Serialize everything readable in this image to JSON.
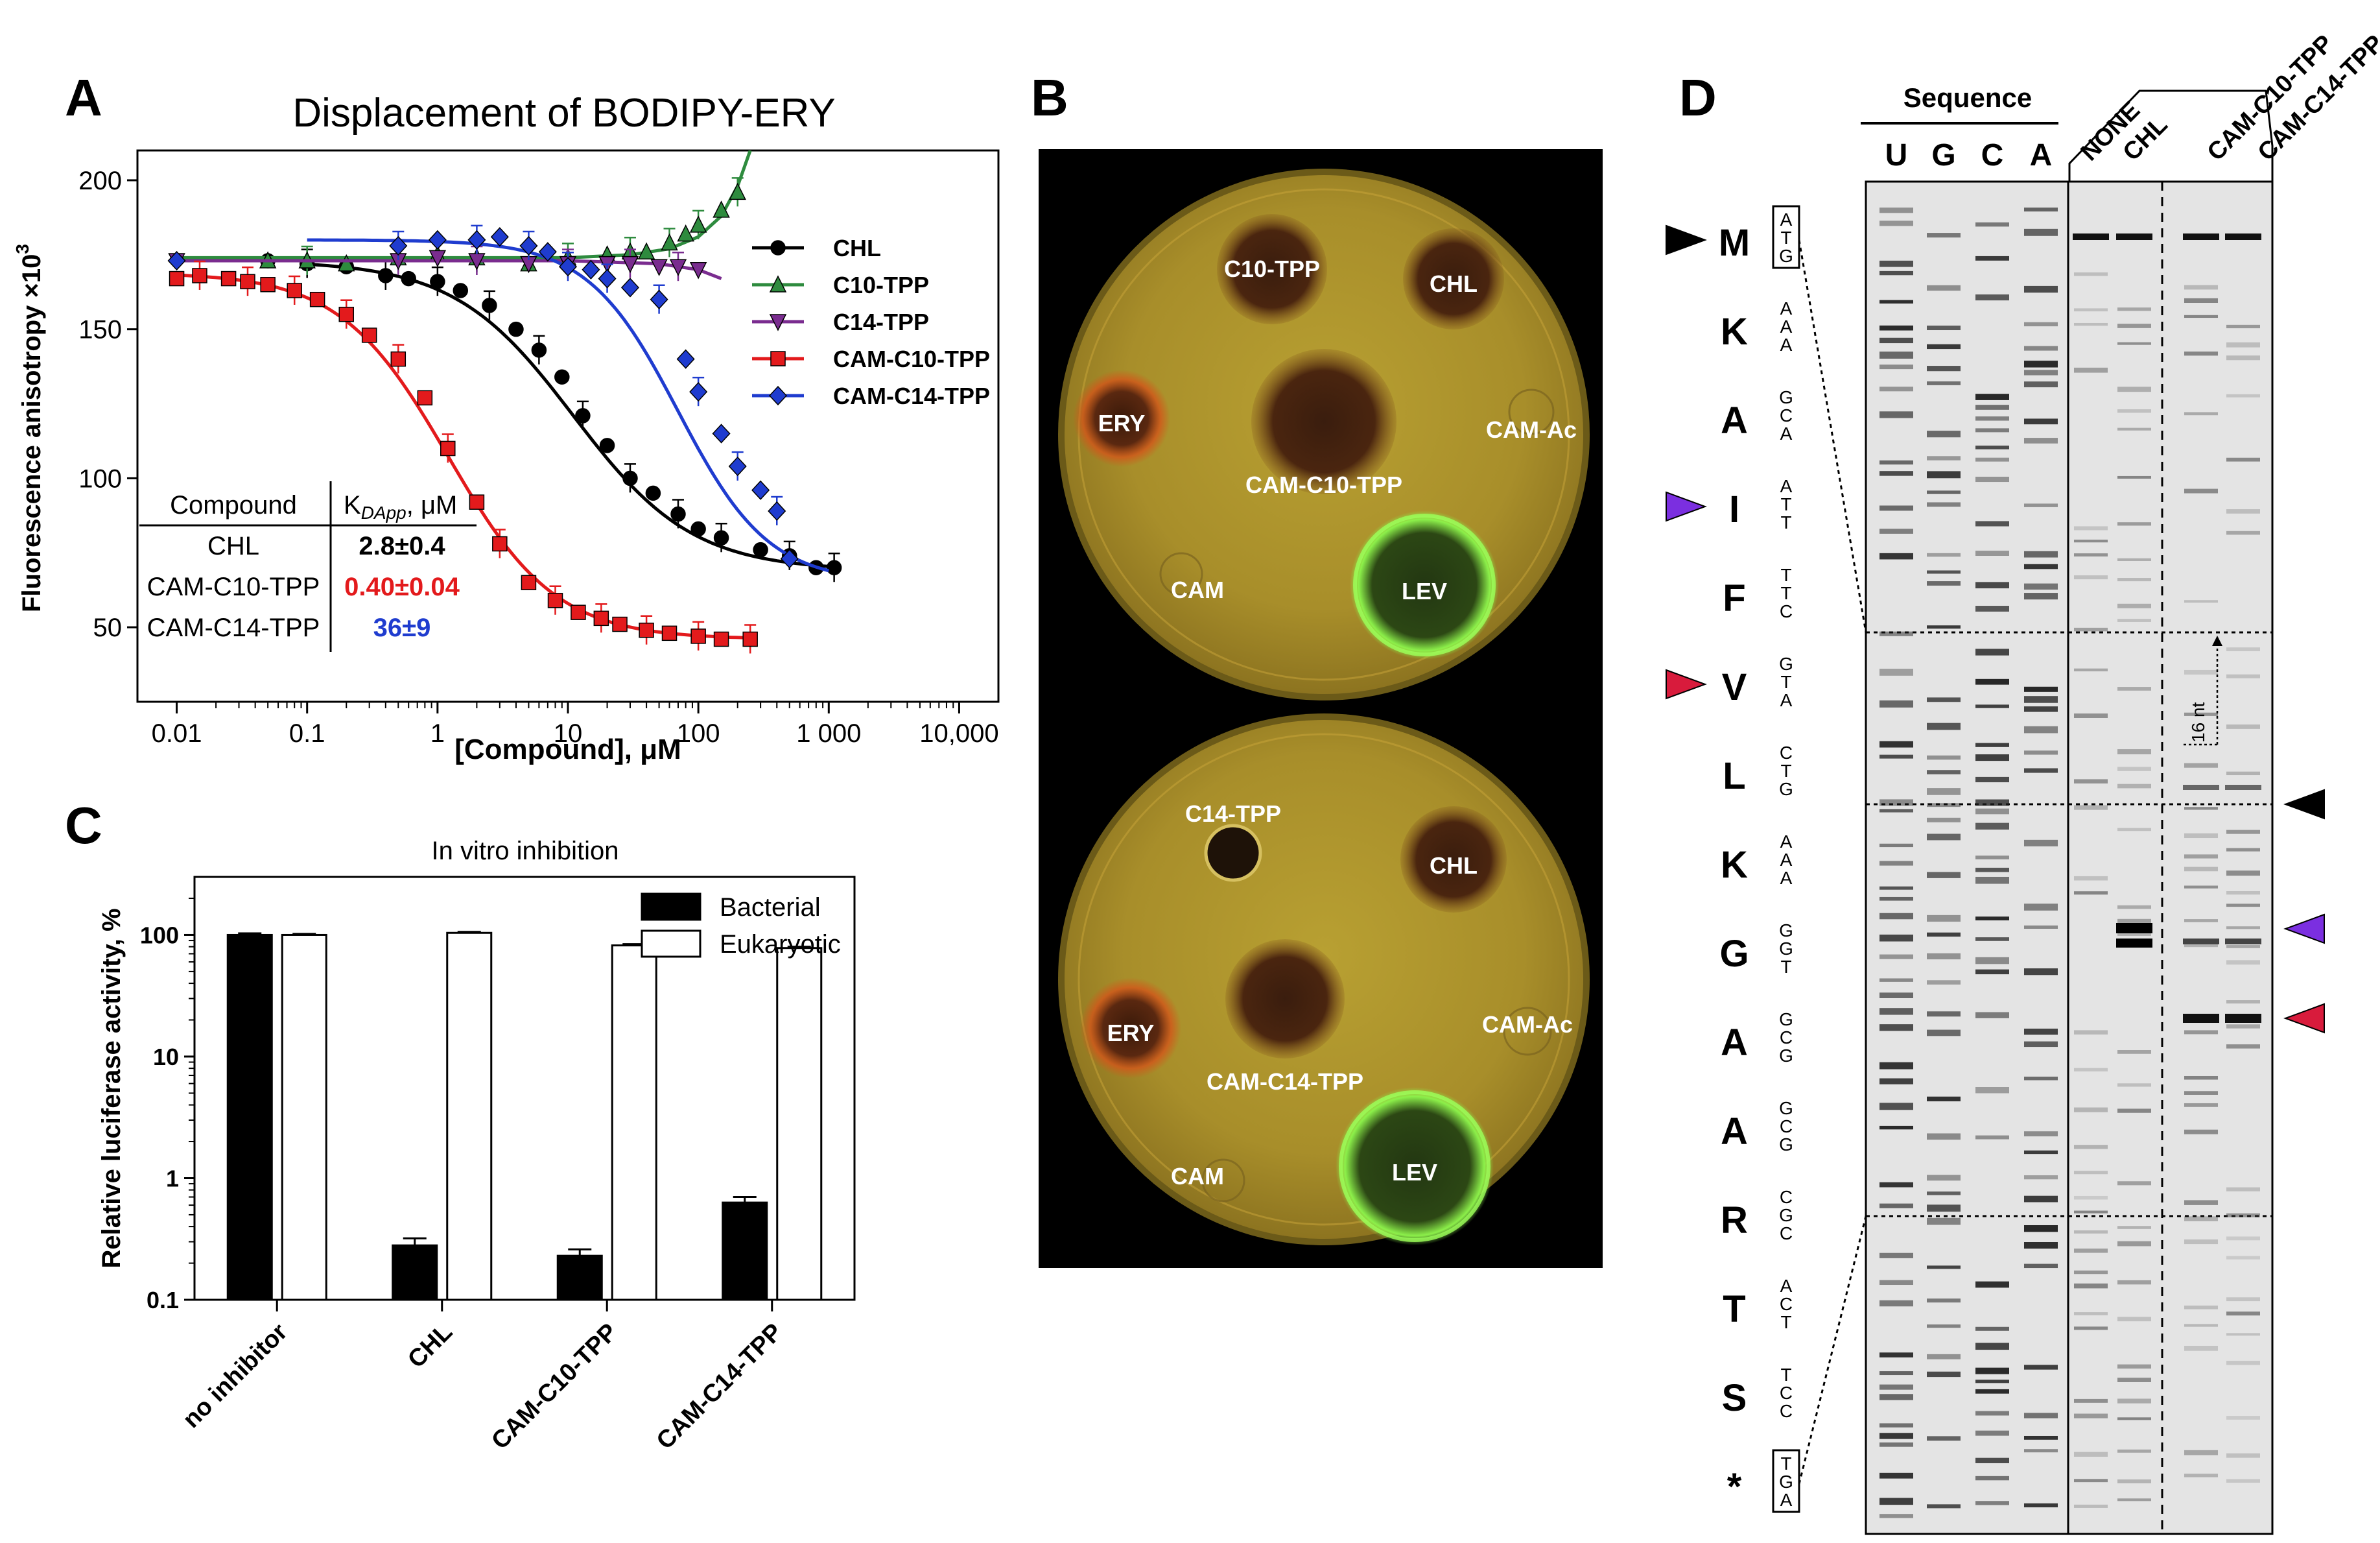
{
  "panel_letters": {
    "a": "A",
    "b": "B",
    "c": "C",
    "d": "D"
  },
  "chart_data": [
    {
      "panel": "A",
      "type": "scatter",
      "title": "Displacement of BODIPY-ERY",
      "xlabel": "[Compound], μM",
      "ylabel": "Fluorescence anisotropy ×10",
      "ylabel_sup": "3",
      "xscale": "log",
      "xlim": [
        0.005,
        20000
      ],
      "ylim": [
        25,
        210
      ],
      "x_ticks": [
        {
          "v": 0.01,
          "label": "0.01"
        },
        {
          "v": 0.1,
          "label": "0.1"
        },
        {
          "v": 1,
          "label": "1"
        },
        {
          "v": 10,
          "label": "10"
        },
        {
          "v": 100,
          "label": "100"
        },
        {
          "v": 1000,
          "label": "1 000"
        },
        {
          "v": 10000,
          "label": "10,000"
        }
      ],
      "y_ticks": [
        {
          "v": 50,
          "label": "50"
        },
        {
          "v": 100,
          "label": "100"
        },
        {
          "v": 150,
          "label": "150"
        },
        {
          "v": 200,
          "label": "200"
        }
      ],
      "series": [
        {
          "name": "CHL",
          "color": "#000000",
          "marker": "circle",
          "x": [
            0.05,
            0.1,
            0.2,
            0.4,
            0.6,
            1,
            1.5,
            2.5,
            4,
            6,
            9,
            13,
            20,
            30,
            45,
            70,
            100,
            150,
            300,
            500,
            800,
            1100
          ],
          "y": [
            173,
            172,
            171,
            168,
            167,
            166,
            163,
            158,
            150,
            143,
            134,
            121,
            111,
            100,
            95,
            88,
            83,
            80,
            76,
            74,
            70,
            70
          ],
          "fit": "sigmoid",
          "fit_top": 173,
          "fit_bottom": 69,
          "fit_ec50": 11,
          "fit_hill": 0.95,
          "fit_range": [
            0.1,
            1100
          ]
        },
        {
          "name": "C10-TPP",
          "color": "#2e8b3e",
          "marker": "triangle-up",
          "x": [
            0.05,
            0.1,
            0.2,
            0.5,
            1,
            2,
            5,
            10,
            20,
            30,
            40,
            60,
            80,
            100,
            150,
            200
          ],
          "y": [
            173,
            173,
            172,
            174,
            175,
            174,
            172,
            174,
            175,
            176,
            176,
            179,
            182,
            185,
            190,
            196
          ],
          "fit": "polyline",
          "fit_x": [
            0.01,
            10,
            30,
            60,
            100,
            150,
            200,
            250
          ],
          "fit_y": [
            174,
            174,
            175,
            177,
            181,
            188,
            198,
            210
          ]
        },
        {
          "name": "C14-TPP",
          "color": "#7a2c8f",
          "marker": "triangle-down",
          "x": [
            0.01,
            0.5,
            1,
            2,
            5,
            10,
            20,
            30,
            50,
            70,
            100
          ],
          "y": [
            173,
            173,
            174,
            173,
            172,
            172,
            172,
            172,
            171,
            171,
            170
          ],
          "fit": "polyline",
          "fit_x": [
            0.01,
            1,
            10,
            50,
            100,
            150
          ],
          "fit_y": [
            173,
            173,
            173,
            172,
            170,
            167
          ]
        },
        {
          "name": "CAM-C10-TPP",
          "color": "#e31a1c",
          "marker": "square",
          "x": [
            0.01,
            0.015,
            0.025,
            0.035,
            0.05,
            0.08,
            0.12,
            0.2,
            0.3,
            0.5,
            0.8,
            1.2,
            2,
            3,
            5,
            8,
            12,
            18,
            25,
            40,
            60,
            100,
            150,
            250
          ],
          "y": [
            167,
            168,
            167,
            166,
            165,
            163,
            160,
            155,
            148,
            140,
            127,
            110,
            92,
            78,
            65,
            59,
            55,
            53,
            51,
            49,
            48,
            47,
            46,
            46
          ],
          "fit": "sigmoid",
          "fit_top": 169,
          "fit_bottom": 46,
          "fit_ec50": 1.2,
          "fit_hill": 1.05,
          "fit_range": [
            0.01,
            250
          ]
        },
        {
          "name": "CAM-C14-TPP",
          "color": "#1f3ccf",
          "marker": "diamond",
          "x": [
            0.01,
            0.5,
            1,
            2,
            3,
            5,
            7,
            10,
            15,
            20,
            30,
            50,
            80,
            100,
            150,
            200,
            300,
            400,
            500
          ],
          "y": [
            173,
            178,
            180,
            180,
            181,
            178,
            176,
            171,
            170,
            167,
            164,
            160,
            140,
            129,
            115,
            104,
            96,
            89,
            73
          ],
          "fit": "sigmoid",
          "fit_top": 180,
          "fit_bottom": 65,
          "fit_ec50": 70,
          "fit_hill": 1.25,
          "fit_range": [
            0.1,
            1000
          ]
        }
      ],
      "table": {
        "header": [
          "Compound",
          "K",
          "DApp",
          ", μM"
        ],
        "rows": [
          {
            "compound": "CHL",
            "value": "2.8±0.4",
            "color": "#000000"
          },
          {
            "compound": "CAM-C10-TPP",
            "value": "0.40±0.04",
            "color": "#e31a1c"
          },
          {
            "compound": "CAM-C14-TPP",
            "value": "36±9",
            "color": "#1f3ccf"
          }
        ]
      }
    },
    {
      "panel": "C",
      "type": "bar",
      "title": "In vitro inhibition",
      "ylabel": "Relative luciferase activity, %",
      "yscale": "log",
      "ylim": [
        0.1,
        300
      ],
      "y_ticks": [
        {
          "v": 0.1,
          "label": "0.1"
        },
        {
          "v": 1,
          "label": "1"
        },
        {
          "v": 10,
          "label": "10"
        },
        {
          "v": 100,
          "label": "100"
        }
      ],
      "categories": [
        "no inhibitor",
        "CHL",
        "CAM-C10-TPP",
        "CAM-C14-TPP"
      ],
      "series": [
        {
          "name": "Bacterial",
          "fill": "#000000",
          "values": [
            100,
            0.28,
            0.23,
            0.63
          ],
          "errors": [
            3,
            0.04,
            0.03,
            0.07
          ]
        },
        {
          "name": "Eukaryotic",
          "fill": "#ffffff",
          "values": [
            100,
            104,
            82,
            78
          ],
          "errors": [
            2,
            2,
            2,
            2
          ]
        }
      ]
    }
  ],
  "panel_b": {
    "plates": [
      {
        "disks": [
          {
            "label": "C10-TPP"
          },
          {
            "label": "CHL"
          },
          {
            "label": "ERY"
          },
          {
            "label": "CAM-C10-TPP"
          },
          {
            "label": "CAM-Ac"
          },
          {
            "label": "CAM"
          },
          {
            "label": "LEV"
          }
        ]
      },
      {
        "disks": [
          {
            "label": "C14-TPP"
          },
          {
            "label": "CHL"
          },
          {
            "label": "ERY"
          },
          {
            "label": "CAM-C14-TPP"
          },
          {
            "label": "CAM-Ac"
          },
          {
            "label": "CAM"
          },
          {
            "label": "LEV"
          }
        ]
      }
    ]
  },
  "panel_d": {
    "sequence_header": "Sequence",
    "lanes_seq": [
      "U",
      "G",
      "C",
      "A"
    ],
    "lanes_samples": [
      "NONE",
      "CHL",
      "CAM-C10-TPP",
      "CAM-C14-TPP"
    ],
    "nt_label": "16 nt",
    "codons": [
      {
        "aa": "M",
        "codon": "ATG",
        "boxed": true,
        "marker": "#000000"
      },
      {
        "aa": "K",
        "codon": "AAA"
      },
      {
        "aa": "A",
        "codon": "GCA"
      },
      {
        "aa": "I",
        "codon": "ATT",
        "marker": "#7b2fe0"
      },
      {
        "aa": "F",
        "codon": "TTC"
      },
      {
        "aa": "V",
        "codon": "GTA",
        "marker": "#d81b3c"
      },
      {
        "aa": "L",
        "codon": "CTG"
      },
      {
        "aa": "K",
        "codon": "AAA"
      },
      {
        "aa": "G",
        "codon": "GGT"
      },
      {
        "aa": "A",
        "codon": "GCG"
      },
      {
        "aa": "A",
        "codon": "GCG"
      },
      {
        "aa": "R",
        "codon": "CGC"
      },
      {
        "aa": "T",
        "codon": "ACT"
      },
      {
        "aa": "S",
        "codon": "TCC"
      },
      {
        "aa": "*",
        "codon": "TGA",
        "boxed": true
      }
    ],
    "right_markers": [
      "#000000",
      "#7b2fe0",
      "#d81b3c"
    ]
  }
}
